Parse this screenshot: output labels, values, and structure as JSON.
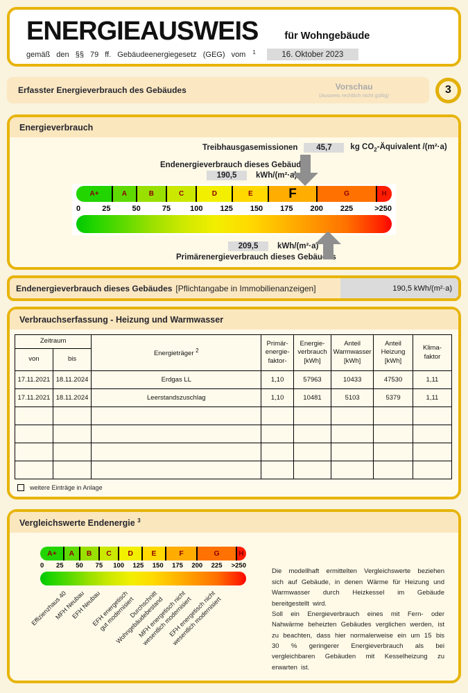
{
  "header": {
    "title": "ENERGIEAUSWEIS",
    "subtitle": "für Wohngebäude",
    "law_text": "gemäß den §§ 79 ff. Gebäudeenergiegesetz (GEG) vom",
    "law_footnote": "1",
    "date": "16. Oktober 2023"
  },
  "section_bar": {
    "title": "Erfasster Energieverbrauch des Gebäudes",
    "preview": "Vorschau",
    "preview_note": "(Ausweis rechtlich nicht gültig)",
    "page_number": "3"
  },
  "energy_panel": {
    "title": "Energieverbrauch",
    "ghg_label": "Treibhausgasemissionen",
    "ghg_value": "45,7",
    "ghg_unit_pre": "kg CO",
    "ghg_unit_sub": "2",
    "ghg_unit_post": "-Äquivalent /(m²·a)",
    "end_label": "Endenergieverbrauch dieses Gebäudes",
    "end_value": "190,5",
    "end_unit": "kWh/(m²·a)",
    "primary_value": "209,5",
    "primary_unit": "kWh/(m²·a)",
    "primary_label": "Primärenergieverbrauch dieses Gebäudes"
  },
  "end_row": {
    "label_bold": "Endenergieverbrauch dieses Gebäudes",
    "label_note": "[Pflichtangabe in Immobilienanzeigen]",
    "value": "190,5 kWh/(m²·a)"
  },
  "consumption_panel": {
    "title": "Verbrauchserfassung - Heizung und Warmwasser",
    "header": {
      "zeitraum": "Zeitraum",
      "von": "von",
      "bis": "bis",
      "energietraeger": "Energieträger",
      "energietraeger_footnote": "2",
      "pef_lines": [
        "Primär-",
        "energie-",
        "faktor-"
      ],
      "verbrauch_lines": [
        "Energie-",
        "verbrauch",
        "[kWh]"
      ],
      "warmwasser_lines": [
        "Anteil",
        "Warmwasser",
        "[kWh]"
      ],
      "heizung_lines": [
        "Anteil",
        "Heizung",
        "[kWh]"
      ],
      "klima_lines": [
        "Klima-",
        "faktor"
      ]
    },
    "rows": [
      [
        "17.11.2021",
        "18.11.2024",
        "Erdgas LL",
        "1,10",
        "57963",
        "10433",
        "47530",
        "1,11"
      ],
      [
        "17.11.2021",
        "18.11.2024",
        "Leerstandszuschlag",
        "1,10",
        "10481",
        "5103",
        "5379",
        "1,11"
      ]
    ],
    "empty_row_count": 4,
    "footer_checkbox_label": "weitere Einträge in Anlage"
  },
  "comparison_panel": {
    "title": "Vergleichswerte Endenergie",
    "title_footnote": "3",
    "paragraphs": [
      "Die modellhaft ermittelten Vergleichswerte beziehen sich auf Gebäude, in denen Wärme für Heizung und Warmwasser durch Heizkessel im Gebäude bereitgestellt wird.",
      "Soll ein Energieverbrauch eines mit Fern- oder Nahwärme beheizten Gebäudes verglichen werden, ist zu beachten, dass hier normalerweise ein um 15 bis 30 % geringerer Energieverbrauch als bei vergleichbaren Gebäuden mit Kesselheizung zu erwarten ist."
    ]
  },
  "colors": {
    "gold": "#E7B40B",
    "strip": "#FBE7BE",
    "value_box": "#DBDBDB",
    "arrow": "#8F8F8F",
    "class_letter": "#8B0000"
  },
  "chart_data": [
    {
      "type": "bar",
      "subtype": "energy-label-scale",
      "name": "energieverbrauch-skala",
      "axis_max": 262.5,
      "unit": "kWh/(m²·a)",
      "current_class": "F",
      "bands": [
        {
          "label": "A+",
          "from": 0,
          "to": 30,
          "color": "#23D500"
        },
        {
          "label": "A",
          "from": 30,
          "to": 50,
          "color": "#5FDA00"
        },
        {
          "label": "B",
          "from": 50,
          "to": 75,
          "color": "#99E000"
        },
        {
          "label": "C",
          "from": 75,
          "to": 100,
          "color": "#CBE800"
        },
        {
          "label": "D",
          "from": 100,
          "to": 130,
          "color": "#F2EF00"
        },
        {
          "label": "E",
          "from": 130,
          "to": 160,
          "color": "#FFD900"
        },
        {
          "label": "F",
          "from": 160,
          "to": 200,
          "color": "#FFAD00"
        },
        {
          "label": "G",
          "from": 200,
          "to": 250,
          "color": "#FF7100"
        },
        {
          "label": "H",
          "from": 250,
          "to": 262.5,
          "color": "#FF1C00"
        }
      ],
      "ticks": [
        {
          "label": "0",
          "value": 0
        },
        {
          "label": "25",
          "value": 25
        },
        {
          "label": "50",
          "value": 50
        },
        {
          "label": "75",
          "value": 75
        },
        {
          "label": "100",
          "value": 100
        },
        {
          "label": "125",
          "value": 125
        },
        {
          "label": "150",
          "value": 150
        },
        {
          "label": "175",
          "value": 175
        },
        {
          "label": "200",
          "value": 200
        },
        {
          "label": "225",
          "value": 225
        },
        {
          "label": ">250",
          "value": 250
        }
      ],
      "markers": [
        {
          "name": "endenergieverbrauch",
          "value": 190.5,
          "direction": "down"
        },
        {
          "name": "primaerenergieverbrauch",
          "value": 209.5,
          "direction": "up"
        }
      ]
    },
    {
      "type": "bar",
      "subtype": "energy-label-scale",
      "name": "vergleichswerte-skala",
      "axis_max": 262.5,
      "unit": "kWh/(m²·a)",
      "bands": [
        {
          "label": "A+",
          "from": 0,
          "to": 30,
          "color": "#23D500"
        },
        {
          "label": "A",
          "from": 30,
          "to": 50,
          "color": "#5FDA00"
        },
        {
          "label": "B",
          "from": 50,
          "to": 75,
          "color": "#99E000"
        },
        {
          "label": "C",
          "from": 75,
          "to": 100,
          "color": "#CBE800"
        },
        {
          "label": "D",
          "from": 100,
          "to": 130,
          "color": "#F2EF00"
        },
        {
          "label": "E",
          "from": 130,
          "to": 160,
          "color": "#FFD900"
        },
        {
          "label": "F",
          "from": 160,
          "to": 200,
          "color": "#FFAD00"
        },
        {
          "label": "G",
          "from": 200,
          "to": 250,
          "color": "#FF7100"
        },
        {
          "label": "H",
          "from": 250,
          "to": 262.5,
          "color": "#FF1C00"
        }
      ],
      "ticks": [
        {
          "label": "0",
          "value": 0
        },
        {
          "label": "25",
          "value": 25
        },
        {
          "label": "50",
          "value": 50
        },
        {
          "label": "75",
          "value": 75
        },
        {
          "label": "100",
          "value": 100
        },
        {
          "label": "125",
          "value": 125
        },
        {
          "label": "150",
          "value": 150
        },
        {
          "label": "175",
          "value": 175
        },
        {
          "label": "200",
          "value": 200
        },
        {
          "label": "225",
          "value": 225
        },
        {
          "label": ">250",
          "value": 250
        }
      ],
      "reference_labels": [
        {
          "value": 27,
          "lines": [
            "Effizienzhaus 40"
          ]
        },
        {
          "value": 49,
          "lines": [
            "MFH Neubau"
          ]
        },
        {
          "value": 68,
          "lines": [
            "EFH Neubau"
          ]
        },
        {
          "value": 102,
          "lines": [
            "EFH energetisch",
            "gut modernisiert"
          ]
        },
        {
          "value": 137,
          "lines": [
            "Durchschnitt",
            "Wohngebäudebestand"
          ]
        },
        {
          "value": 172,
          "lines": [
            "MFH energetisch nicht",
            "wesentlich modernisiert"
          ]
        },
        {
          "value": 208,
          "lines": [
            "EFH energetisch nicht",
            "wesentlich modernisiert"
          ]
        }
      ]
    }
  ]
}
